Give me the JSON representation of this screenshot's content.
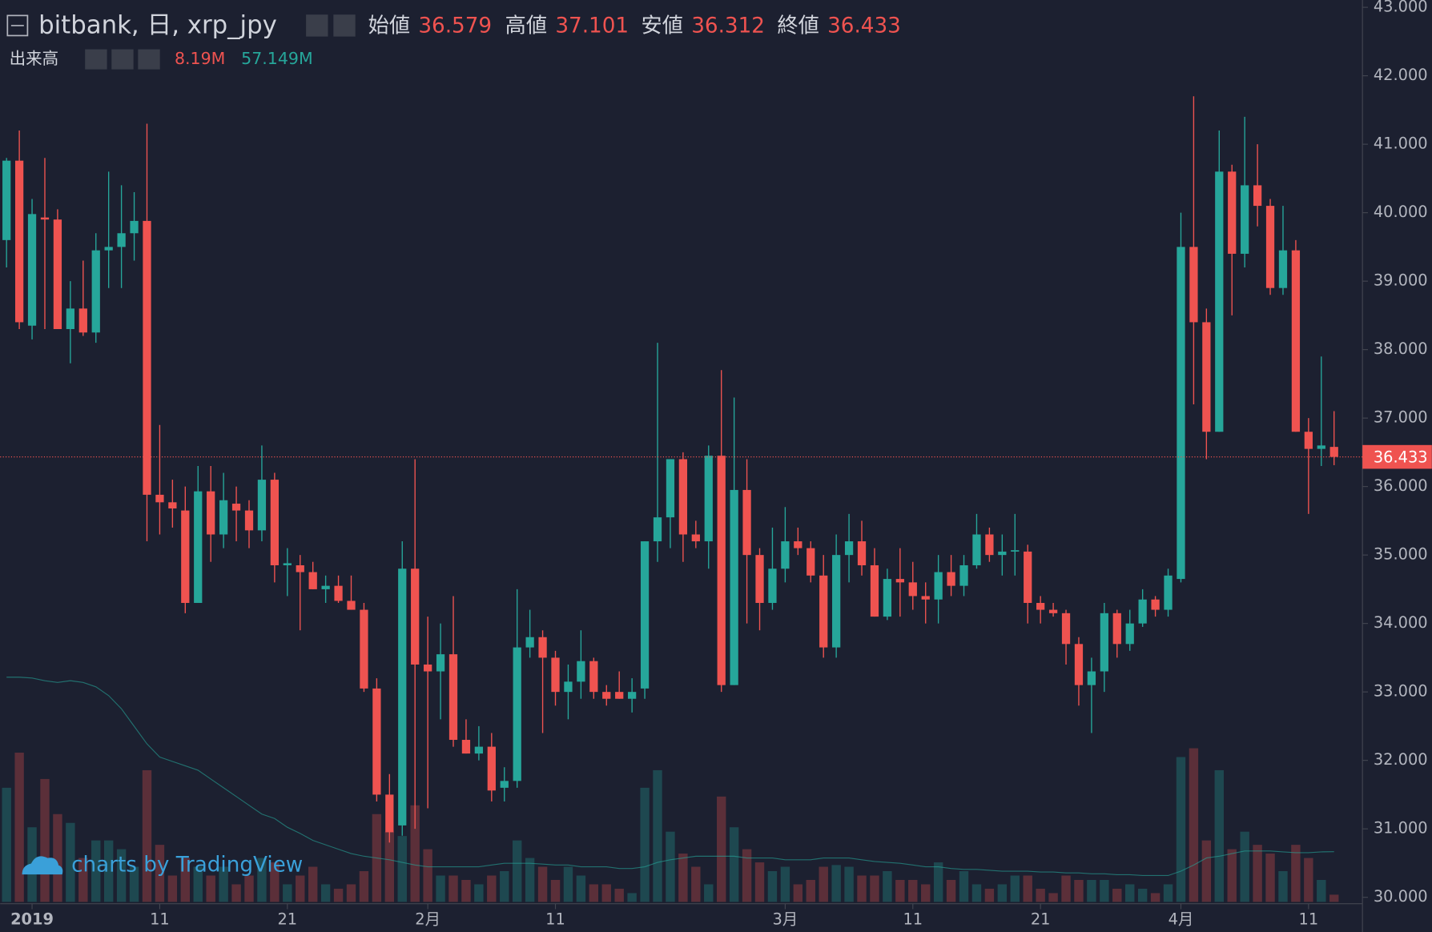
{
  "chart_data": {
    "type": "candlestick",
    "title": "bitbank, 日, xrp_jpy",
    "legend": {
      "open": "始値",
      "high": "高値",
      "low": "安値",
      "close": "終値",
      "volume": "出来高",
      "volume_label": "8.19M",
      "volume_ma_label": "57.149M"
    },
    "watermark": "charts by TradingView",
    "up_color": "#26a69a",
    "down_color": "#ef5350",
    "x": [
      "2018-12-30",
      "2018-12-31",
      "2019-01-01",
      "2019-01-02",
      "2019-01-03",
      "2019-01-04",
      "2019-01-05",
      "2019-01-06",
      "2019-01-07",
      "2019-01-08",
      "2019-01-09",
      "2019-01-10",
      "2019-01-11",
      "2019-01-12",
      "2019-01-13",
      "2019-01-14",
      "2019-01-15",
      "2019-01-16",
      "2019-01-17",
      "2019-01-18",
      "2019-01-19",
      "2019-01-20",
      "2019-01-21",
      "2019-01-22",
      "2019-01-23",
      "2019-01-24",
      "2019-01-25",
      "2019-01-26",
      "2019-01-27",
      "2019-01-28",
      "2019-01-29",
      "2019-01-30",
      "2019-01-31",
      "2019-02-01",
      "2019-02-02",
      "2019-02-03",
      "2019-02-04",
      "2019-02-05",
      "2019-02-06",
      "2019-02-07",
      "2019-02-08",
      "2019-02-09",
      "2019-02-10",
      "2019-02-11",
      "2019-02-12",
      "2019-02-13",
      "2019-02-14",
      "2019-02-15",
      "2019-02-16",
      "2019-02-17",
      "2019-02-18",
      "2019-02-19",
      "2019-02-20",
      "2019-02-21",
      "2019-02-22",
      "2019-02-23",
      "2019-02-24",
      "2019-02-25",
      "2019-02-26",
      "2019-02-27",
      "2019-02-28",
      "2019-03-01",
      "2019-03-02",
      "2019-03-03",
      "2019-03-04",
      "2019-03-05",
      "2019-03-06",
      "2019-03-07",
      "2019-03-08",
      "2019-03-09",
      "2019-03-10",
      "2019-03-11",
      "2019-03-12",
      "2019-03-13",
      "2019-03-14",
      "2019-03-15",
      "2019-03-16",
      "2019-03-17",
      "2019-03-18",
      "2019-03-19",
      "2019-03-20",
      "2019-03-21",
      "2019-03-22",
      "2019-03-23",
      "2019-03-24",
      "2019-03-25",
      "2019-03-26",
      "2019-03-27",
      "2019-03-28",
      "2019-03-29",
      "2019-03-30",
      "2019-03-31",
      "2019-04-01",
      "2019-04-02",
      "2019-04-03",
      "2019-04-04",
      "2019-04-05",
      "2019-04-06",
      "2019-04-07",
      "2019-04-08",
      "2019-04-09",
      "2019-04-10",
      "2019-04-11",
      "2019-04-12",
      "2019-04-13"
    ],
    "open": [
      39.6,
      40.76,
      38.35,
      39.93,
      39.9,
      38.3,
      38.6,
      38.25,
      39.45,
      39.5,
      39.7,
      39.88,
      35.88,
      35.77,
      35.65,
      34.3,
      35.93,
      35.3,
      35.75,
      35.65,
      35.36,
      36.1,
      34.85,
      34.85,
      34.75,
      34.5,
      34.55,
      34.33,
      34.2,
      33.05,
      31.5,
      31.05,
      34.8,
      33.4,
      33.3,
      33.55,
      32.3,
      32.1,
      32.2,
      31.6,
      31.7,
      33.65,
      33.8,
      33.5,
      33.0,
      33.15,
      33.45,
      33.0,
      33.0,
      32.9,
      33.05,
      35.2,
      35.55,
      36.4,
      35.3,
      35.2,
      36.45,
      33.1,
      35.95,
      35.0,
      34.3,
      34.8,
      35.2,
      35.1,
      34.7,
      33.65,
      35.0,
      35.2,
      34.85,
      34.1,
      34.65,
      34.6,
      34.4,
      34.35,
      34.75,
      34.55,
      34.85,
      35.3,
      35.0,
      35.05,
      35.05,
      34.3,
      34.2,
      34.15,
      33.7,
      33.1,
      33.3,
      34.15,
      33.7,
      34.0,
      34.35,
      34.2,
      34.65,
      39.5,
      38.4,
      36.8,
      40.6,
      39.4,
      40.4,
      40.1,
      38.9,
      39.45,
      36.8,
      36.55,
      36.579
    ],
    "high": [
      40.8,
      41.2,
      40.2,
      40.8,
      40.05,
      39.0,
      39.3,
      39.7,
      40.6,
      40.4,
      40.3,
      41.3,
      36.9,
      36.1,
      36.0,
      36.3,
      36.3,
      36.2,
      36.0,
      35.8,
      36.6,
      36.2,
      35.1,
      35.0,
      34.9,
      34.7,
      34.7,
      34.7,
      34.3,
      33.2,
      31.8,
      35.2,
      36.4,
      34.1,
      34.0,
      34.4,
      32.6,
      32.5,
      32.4,
      31.9,
      34.5,
      34.2,
      33.9,
      33.6,
      33.4,
      33.9,
      33.5,
      33.1,
      33.3,
      33.2,
      35.2,
      38.1,
      36.4,
      36.5,
      35.5,
      36.6,
      37.7,
      37.3,
      36.4,
      35.1,
      35.4,
      35.7,
      35.4,
      35.2,
      35.0,
      35.3,
      35.6,
      35.5,
      35.1,
      34.8,
      35.1,
      34.9,
      34.6,
      35.0,
      35.0,
      35.0,
      35.6,
      35.4,
      35.3,
      35.6,
      35.15,
      34.4,
      34.3,
      34.2,
      33.8,
      33.5,
      34.3,
      34.2,
      34.2,
      34.5,
      34.4,
      34.8,
      40.0,
      41.7,
      38.6,
      41.2,
      40.7,
      41.4,
      41.0,
      40.2,
      40.1,
      39.6,
      37.0,
      37.9,
      37.101
    ],
    "low": [
      39.2,
      38.3,
      38.15,
      38.3,
      38.3,
      37.8,
      38.2,
      38.1,
      38.9,
      38.9,
      39.3,
      35.2,
      35.3,
      35.4,
      34.15,
      34.3,
      34.9,
      35.1,
      35.2,
      35.1,
      35.2,
      34.6,
      34.4,
      33.9,
      34.5,
      34.3,
      34.3,
      34.2,
      33.0,
      31.4,
      30.8,
      30.9,
      31.0,
      31.3,
      32.6,
      32.2,
      32.1,
      32.0,
      31.4,
      31.4,
      31.6,
      33.5,
      32.4,
      32.8,
      32.6,
      32.9,
      32.9,
      32.8,
      32.9,
      32.7,
      32.9,
      34.9,
      35.1,
      34.9,
      35.1,
      34.8,
      33.0,
      33.1,
      34.0,
      33.9,
      34.2,
      34.6,
      35.0,
      34.6,
      33.5,
      33.5,
      34.6,
      34.7,
      34.1,
      34.05,
      34.1,
      34.2,
      34.0,
      34.0,
      34.4,
      34.4,
      34.8,
      34.9,
      34.7,
      34.7,
      34.0,
      34.0,
      34.1,
      33.4,
      32.8,
      32.4,
      33.0,
      33.5,
      33.6,
      33.95,
      34.1,
      34.1,
      34.6,
      37.2,
      36.4,
      36.8,
      38.5,
      39.2,
      39.8,
      38.8,
      38.8,
      36.8,
      35.6,
      36.3,
      36.312
    ],
    "close": [
      40.76,
      38.4,
      39.98,
      39.9,
      38.3,
      38.6,
      38.25,
      39.45,
      39.5,
      39.7,
      39.88,
      35.88,
      35.77,
      35.68,
      34.3,
      35.93,
      35.3,
      35.8,
      35.65,
      35.36,
      36.1,
      34.85,
      34.88,
      34.75,
      34.5,
      34.55,
      34.33,
      34.2,
      33.05,
      31.5,
      30.95,
      34.8,
      33.4,
      33.3,
      33.55,
      32.3,
      32.1,
      32.2,
      31.56,
      31.7,
      33.65,
      33.8,
      33.5,
      33.0,
      33.15,
      33.45,
      33.0,
      32.9,
      32.9,
      33.0,
      35.2,
      35.55,
      36.4,
      35.3,
      35.2,
      36.45,
      33.1,
      35.95,
      35.0,
      34.3,
      34.8,
      35.2,
      35.1,
      34.7,
      33.65,
      35.0,
      35.2,
      34.85,
      34.1,
      34.65,
      34.6,
      34.4,
      34.35,
      34.75,
      34.55,
      34.85,
      35.3,
      35.0,
      35.05,
      35.07,
      34.3,
      34.2,
      34.15,
      33.7,
      33.1,
      33.3,
      34.15,
      33.7,
      34.0,
      34.35,
      34.2,
      34.7,
      39.5,
      38.4,
      36.8,
      40.6,
      39.4,
      40.4,
      40.1,
      38.9,
      39.45,
      36.8,
      36.55,
      36.6,
      36.433
    ],
    "volume": [
      130,
      170,
      85,
      140,
      100,
      90,
      50,
      70,
      70,
      60,
      40,
      150,
      65,
      30,
      50,
      40,
      30,
      40,
      20,
      30,
      50,
      45,
      20,
      30,
      40,
      20,
      15,
      20,
      35,
      100,
      80,
      75,
      110,
      60,
      30,
      30,
      25,
      20,
      30,
      35,
      70,
      50,
      40,
      25,
      40,
      30,
      20,
      20,
      15,
      10,
      130,
      150,
      80,
      55,
      40,
      20,
      120,
      85,
      60,
      45,
      35,
      40,
      20,
      25,
      40,
      42,
      40,
      30,
      30,
      35,
      25,
      25,
      20,
      45,
      25,
      35,
      20,
      15,
      20,
      30,
      30,
      15,
      10,
      30,
      25,
      25,
      25,
      15,
      20,
      15,
      10,
      20,
      165,
      175,
      70,
      150,
      60,
      80,
      65,
      55,
      35,
      65,
      50,
      25,
      8.19
    ],
    "volume_ma": [
      256,
      256,
      255,
      252,
      250,
      252,
      250,
      245,
      235,
      220,
      200,
      180,
      165,
      160,
      155,
      150,
      140,
      130,
      120,
      110,
      100,
      95,
      85,
      78,
      70,
      65,
      60,
      55,
      52,
      50,
      48,
      45,
      42,
      40,
      40,
      40,
      40,
      40,
      42,
      44,
      44,
      44,
      43,
      42,
      42,
      40,
      40,
      40,
      38,
      38,
      40,
      45,
      48,
      50,
      52,
      52,
      52,
      52,
      50,
      50,
      50,
      48,
      48,
      48,
      50,
      50,
      50,
      48,
      46,
      45,
      44,
      42,
      40,
      40,
      38,
      37,
      37,
      36,
      35,
      35,
      35,
      34,
      34,
      33,
      33,
      32,
      32,
      31,
      31,
      30,
      30,
      30,
      35,
      42,
      50,
      52,
      55,
      58,
      58,
      58,
      57,
      56,
      56,
      57,
      57.149
    ],
    "ylim": [
      30,
      43
    ],
    "yticks": [
      {
        "value": 30,
        "label": "30.000"
      },
      {
        "value": 31,
        "label": "31.000"
      },
      {
        "value": 32,
        "label": "32.000"
      },
      {
        "value": 33,
        "label": "33.000"
      },
      {
        "value": 34,
        "label": "34.000"
      },
      {
        "value": 35,
        "label": "35.000"
      },
      {
        "value": 36,
        "label": "36.000"
      },
      {
        "value": 37,
        "label": "37.000"
      },
      {
        "value": 38,
        "label": "38.000"
      },
      {
        "value": 39,
        "label": "39.000"
      },
      {
        "value": 40,
        "label": "40.000"
      },
      {
        "value": 41,
        "label": "41.000"
      },
      {
        "value": 42,
        "label": "42.000"
      },
      {
        "value": 43,
        "label": "43.000"
      }
    ],
    "xticks": [
      {
        "value": "2019-01-01",
        "label": "2019"
      },
      {
        "value": "2019-01-11",
        "label": "11"
      },
      {
        "value": "2019-01-21",
        "label": "21"
      },
      {
        "value": "2019-02-01",
        "label": "2月"
      },
      {
        "value": "2019-02-11",
        "label": "11"
      },
      {
        "value": "2019-03-01",
        "label": "3月"
      },
      {
        "value": "2019-03-11",
        "label": "11"
      },
      {
        "value": "2019-03-21",
        "label": "21"
      },
      {
        "value": "2019-04-01",
        "label": "4月"
      },
      {
        "value": "2019-04-11",
        "label": "11"
      }
    ]
  }
}
